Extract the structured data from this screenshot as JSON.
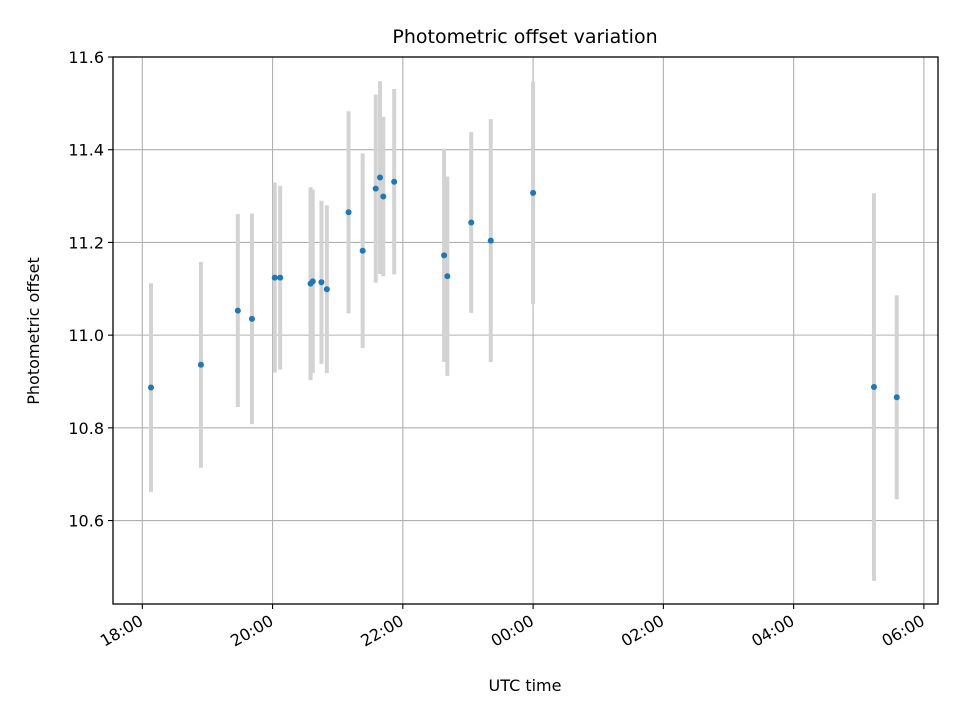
{
  "chart_data": {
    "type": "scatter",
    "title": "Photometric offset variation",
    "xlabel": "UTC time",
    "ylabel": "Photometric offset",
    "x_ticks": [
      "18:00",
      "20:00",
      "22:00",
      "00:00",
      "02:00",
      "04:00",
      "06:00"
    ],
    "y_ticks": [
      "10.6",
      "10.8",
      "11.0",
      "11.2",
      "11.4",
      "11.6"
    ],
    "ylim": [
      10.42,
      11.6
    ],
    "xlim": [
      "17:33",
      "06:13"
    ],
    "grid": true,
    "marker_color": "#1f77b4",
    "errorbar_color": "#d3d3d3",
    "series": [
      {
        "points": [
          {
            "x": "18:08",
            "y": 10.887,
            "err": 0.225
          },
          {
            "x": "18:54",
            "y": 10.936,
            "err": 0.222
          },
          {
            "x": "19:28",
            "y": 11.053,
            "err": 0.208
          },
          {
            "x": "19:41",
            "y": 11.035,
            "err": 0.227
          },
          {
            "x": "20:02",
            "y": 11.124,
            "err": 0.205
          },
          {
            "x": "20:07",
            "y": 11.124,
            "err": 0.198
          },
          {
            "x": "20:35",
            "y": 11.111,
            "err": 0.208
          },
          {
            "x": "20:37",
            "y": 11.116,
            "err": 0.198
          },
          {
            "x": "20:45",
            "y": 11.114,
            "err": 0.176
          },
          {
            "x": "20:50",
            "y": 11.099,
            "err": 0.181
          },
          {
            "x": "21:10",
            "y": 11.265,
            "err": 0.218
          },
          {
            "x": "21:23",
            "y": 11.182,
            "err": 0.21
          },
          {
            "x": "21:35",
            "y": 11.316,
            "err": 0.203
          },
          {
            "x": "21:39",
            "y": 11.34,
            "err": 0.208
          },
          {
            "x": "21:42",
            "y": 11.299,
            "err": 0.172
          },
          {
            "x": "21:52",
            "y": 11.331,
            "err": 0.2
          },
          {
            "x": "22:38",
            "y": 11.172,
            "err": 0.23
          },
          {
            "x": "22:41",
            "y": 11.127,
            "err": 0.215
          },
          {
            "x": "23:03",
            "y": 11.243,
            "err": 0.195
          },
          {
            "x": "23:21",
            "y": 11.204,
            "err": 0.262
          },
          {
            "x": "00:00",
            "y": 11.307,
            "err": 0.24
          },
          {
            "x": "05:14",
            "y": 10.888,
            "err": 0.418
          },
          {
            "x": "05:35",
            "y": 10.866,
            "err": 0.22
          }
        ]
      }
    ]
  }
}
